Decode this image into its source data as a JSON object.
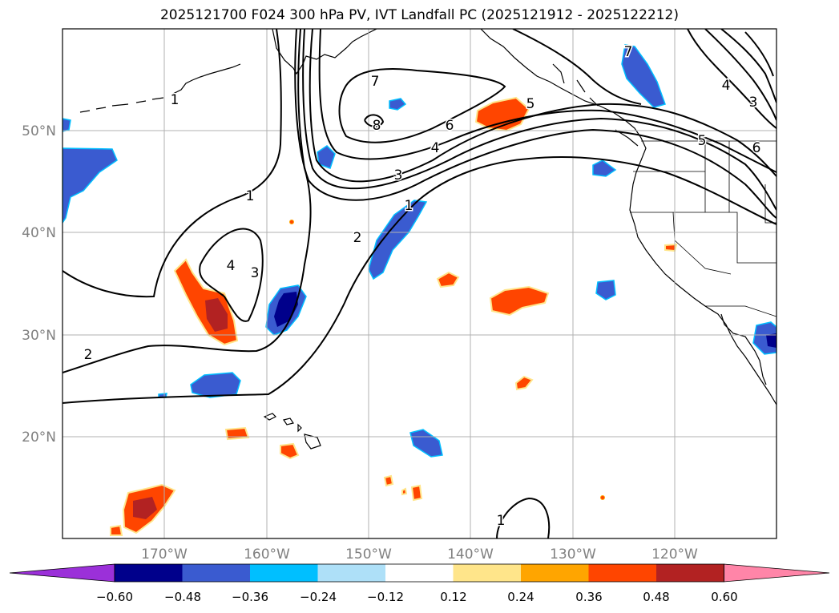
{
  "title": "2025121700 F024 300 hPa PV, IVT Landfall PC (2025121912 - 2025122212)",
  "map": {
    "extent": {
      "lon": [
        -180,
        -110
      ],
      "lat": [
        10,
        60
      ]
    },
    "lat_labels": [
      "20°N",
      "30°N",
      "40°N",
      "50°N"
    ],
    "lon_labels": [
      "170°W",
      "160°W",
      "150°W",
      "140°W",
      "130°W",
      "120°W"
    ],
    "contour_labels": [
      "1",
      "1",
      "1",
      "1",
      "2",
      "2",
      "3",
      "3",
      "3",
      "4",
      "4",
      "4",
      "5",
      "5",
      "6",
      "6",
      "7",
      "7",
      "8"
    ],
    "colors": {
      "gridline": "#b0b0b0",
      "tick_label": "#808080",
      "contour": "#000000"
    }
  },
  "colorbar": {
    "ticks": [
      "−0.60",
      "−0.48",
      "−0.36",
      "−0.24",
      "−0.12",
      "0.12",
      "0.24",
      "0.36",
      "0.48",
      "0.60"
    ],
    "colors": [
      "#9b30d9",
      "#00008b",
      "#3a5bd0",
      "#00bfff",
      "#aee0f8",
      "#ffffff",
      "#ffe58a",
      "#ffa500",
      "#ff4500",
      "#b22222",
      "#ff85a8"
    ]
  }
}
